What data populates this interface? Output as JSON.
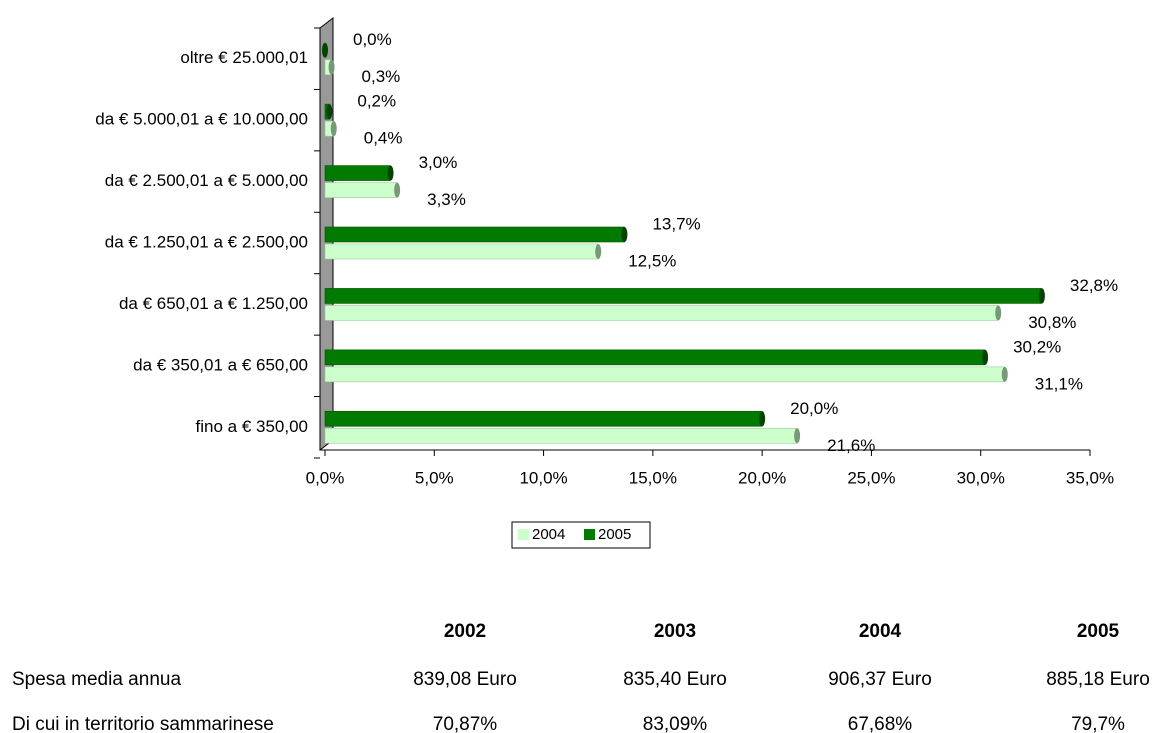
{
  "chart_data": {
    "type": "hbar",
    "categories": [
      "oltre € 25.000,01",
      "da € 5.000,01 a € 10.000,00",
      "da € 2.500,01 a € 5.000,00",
      "da € 1.250,01 a € 2.500,00",
      "da € 650,01 a € 1.250,00",
      "da € 350,01 a € 650,00",
      "fino a € 350,00"
    ],
    "series": [
      {
        "name": "2004",
        "color": "#ccffcc",
        "values": [
          0.3,
          0.4,
          3.3,
          12.5,
          30.8,
          31.1,
          21.6
        ],
        "value_labels": [
          "0,3%",
          "0,4%",
          "3,3%",
          "12,5%",
          "30,8%",
          "31,1%",
          "21,6%"
        ]
      },
      {
        "name": "2005",
        "color": "#007a00",
        "values": [
          0.0,
          0.2,
          3.0,
          13.7,
          32.8,
          30.2,
          20.0
        ],
        "value_labels": [
          "0,0%",
          "0,2%",
          "3,0%",
          "13,7%",
          "32,8%",
          "30,2%",
          "20,0%"
        ]
      }
    ],
    "xlim": [
      0,
      35
    ],
    "xticks": [
      {
        "value": 0,
        "label": "0,0%"
      },
      {
        "value": 5,
        "label": "5,0%"
      },
      {
        "value": 10,
        "label": "10,0%"
      },
      {
        "value": 15,
        "label": "15,0%"
      },
      {
        "value": 20,
        "label": "20,0%"
      },
      {
        "value": 25,
        "label": "25,0%"
      },
      {
        "value": 30,
        "label": "30,0%"
      },
      {
        "value": 35,
        "label": "35,0%"
      }
    ],
    "legend": "bottom"
  },
  "table": {
    "columns": [
      "2002",
      "2003",
      "2004",
      "2005"
    ],
    "rows": [
      {
        "label": "Spesa media annua",
        "cells": [
          "839,08 Euro",
          "835,40 Euro",
          "906,37 Euro",
          "885,18 Euro"
        ]
      },
      {
        "label": "Di cui in territorio sammarinese",
        "cells": [
          "70,87%",
          "83,09%",
          "67,68%",
          "79,7%"
        ]
      }
    ]
  }
}
